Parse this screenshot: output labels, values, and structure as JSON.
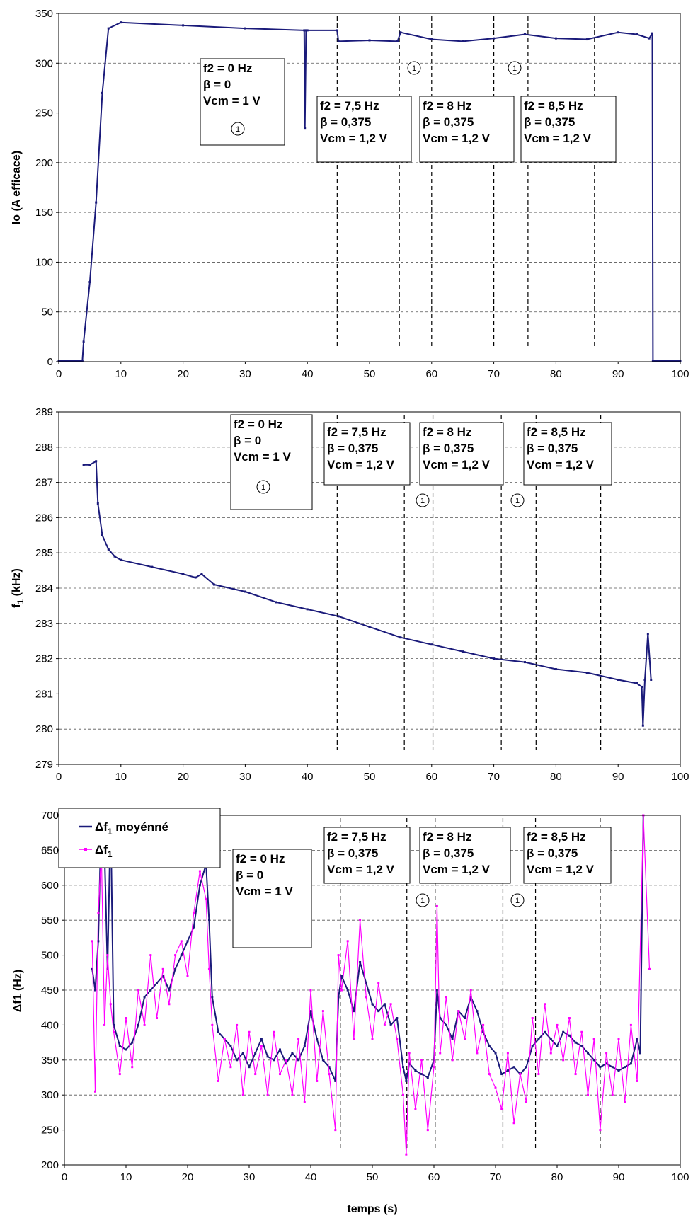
{
  "panels": [
    {
      "id": "io",
      "ylabel": "Io (A efficace)",
      "yticks": [
        "0",
        "50",
        "100",
        "150",
        "200",
        "250",
        "300",
        "350"
      ],
      "xticks": [
        "0",
        "10",
        "20",
        "30",
        "40",
        "50",
        "60",
        "70",
        "80",
        "90",
        "100"
      ],
      "boxes": [
        {
          "lines": [
            "f2 = 0 Hz",
            "β = 0",
            "Vcm = 1 V"
          ],
          "marker": "1"
        },
        {
          "lines": [
            "f2 = 7,5 Hz",
            "β = 0,375",
            "Vcm = 1,2 V"
          ],
          "marker": ""
        },
        {
          "lines": [
            "f2 = 8 Hz",
            "β = 0,375",
            "Vcm = 1,2 V"
          ],
          "marker": ""
        },
        {
          "lines": [
            "f2 = 8,5 Hz",
            "β = 0,375",
            "Vcm = 1,2 V"
          ],
          "marker": ""
        }
      ],
      "markers": [
        "1",
        "1"
      ]
    },
    {
      "id": "f1",
      "ylabel": "f",
      "ylabel_sub": "1",
      "ylabel_rest": " (kHz)",
      "yticks": [
        "279",
        "280",
        "281",
        "282",
        "283",
        "284",
        "285",
        "286",
        "287",
        "288",
        "289"
      ],
      "xticks": [
        "0",
        "10",
        "20",
        "30",
        "40",
        "50",
        "60",
        "70",
        "80",
        "90",
        "100"
      ],
      "boxes": [
        {
          "lines": [
            "f2 = 0 Hz",
            "β = 0",
            "Vcm = 1 V"
          ],
          "marker": "1"
        },
        {
          "lines": [
            "f2 = 7,5 Hz",
            "β = 0,375",
            "Vcm = 1,2 V"
          ],
          "marker": ""
        },
        {
          "lines": [
            "f2 = 8 Hz",
            "β = 0,375",
            "Vcm = 1,2 V"
          ],
          "marker": ""
        },
        {
          "lines": [
            "f2 = 8,5 Hz",
            "β = 0,375",
            "Vcm = 1,2 V"
          ],
          "marker": ""
        }
      ],
      "markers": [
        "1",
        "1"
      ]
    },
    {
      "id": "df1",
      "ylabel": "Δf1  (Hz)",
      "xlabel": "temps (s)",
      "yticks": [
        "200",
        "250",
        "300",
        "350",
        "400",
        "450",
        "500",
        "550",
        "600",
        "650",
        "700"
      ],
      "xticks": [
        "0",
        "10",
        "20",
        "30",
        "40",
        "50",
        "60",
        "70",
        "80",
        "90",
        "100"
      ],
      "boxes": [
        {
          "lines": [
            "f2 = 0 Hz",
            "β = 0",
            "Vcm = 1 V"
          ],
          "marker": ""
        },
        {
          "lines": [
            "f2 = 7,5 Hz",
            "β = 0,375",
            "Vcm = 1,2 V"
          ],
          "marker": ""
        },
        {
          "lines": [
            "f2 = 8 Hz",
            "β = 0,375",
            "Vcm = 1,2 V"
          ],
          "marker": ""
        },
        {
          "lines": [
            "f2 = 8,5 Hz",
            "β = 0,375",
            "Vcm = 1,2 V"
          ],
          "marker": ""
        }
      ],
      "markers": [
        "1",
        "1"
      ],
      "legend": [
        {
          "main": "Δf",
          "sub": "1",
          "rest": " moyénné"
        },
        {
          "main": "Δf",
          "sub": "1",
          "rest": ""
        }
      ]
    }
  ],
  "chart_data": [
    {
      "type": "line",
      "ylabel": "Io (A efficace)",
      "xlim": [
        0,
        100
      ],
      "ylim": [
        0,
        350
      ],
      "grid": true,
      "color": "#1a1a7a",
      "x": [
        0,
        3.8,
        4,
        5,
        6,
        7,
        8,
        10,
        20,
        30,
        39.5,
        39.6,
        39.8,
        40,
        44.8,
        45,
        50,
        54.5,
        55,
        60,
        65,
        70,
        75,
        80,
        85,
        90,
        93,
        95,
        95.5,
        95.6,
        96,
        100
      ],
      "y": [
        1,
        1,
        20,
        80,
        160,
        270,
        335,
        341,
        338,
        335,
        333,
        235,
        333,
        333,
        333,
        322,
        323,
        322,
        331,
        324,
        322,
        325,
        329,
        325,
        324,
        331,
        329,
        325,
        330,
        1,
        1,
        1
      ],
      "vlines": [
        44.8,
        54.8,
        60,
        70,
        75.5,
        86.2
      ]
    },
    {
      "type": "line",
      "ylabel": "f1 (kHz)",
      "xlim": [
        0,
        100
      ],
      "ylim": [
        279,
        289
      ],
      "grid": true,
      "color": "#1a1a7a",
      "x": [
        4,
        5,
        6,
        6.3,
        7,
        8,
        9,
        10,
        15,
        20,
        22,
        23,
        25,
        30,
        35,
        40,
        45,
        50,
        55,
        60,
        65,
        70,
        75,
        80,
        85,
        90,
        93,
        93.8,
        94,
        94.3,
        94.8,
        95.3
      ],
      "y": [
        287.5,
        287.5,
        287.6,
        286.4,
        285.5,
        285.1,
        284.9,
        284.8,
        284.6,
        284.4,
        284.3,
        284.4,
        284.1,
        283.9,
        283.6,
        283.4,
        283.2,
        282.9,
        282.6,
        282.4,
        282.2,
        282.0,
        281.9,
        281.7,
        281.6,
        281.4,
        281.3,
        281.2,
        280.1,
        281.4,
        282.7,
        281.4
      ],
      "vlines": [
        44.8,
        55.6,
        60.2,
        71.2,
        76.8,
        87.2
      ]
    },
    {
      "type": "line",
      "xlabel": "temps (s)",
      "ylabel": "Δf1 (Hz)",
      "xlim": [
        0,
        100
      ],
      "ylim": [
        200,
        700
      ],
      "grid": true,
      "series": [
        {
          "name": "Δf1 moyénné",
          "color": "#1a1a7a",
          "x": [
            4.5,
            5,
            5.5,
            6,
            6.5,
            7,
            7.5,
            8,
            9,
            10,
            11,
            12,
            13,
            14,
            15,
            16,
            17,
            18,
            19,
            20,
            21,
            22,
            23,
            23.5,
            24,
            25,
            26,
            27,
            28,
            29,
            30,
            31,
            32,
            33,
            34,
            35,
            36,
            37,
            38,
            39,
            40,
            41,
            42,
            43,
            44,
            44.5,
            45,
            46,
            47,
            48,
            49,
            50,
            51,
            52,
            53,
            54,
            55,
            55.5,
            56,
            57,
            58,
            59,
            60,
            60.5,
            61,
            62,
            63,
            64,
            65,
            66,
            67,
            68,
            69,
            70,
            71,
            72,
            73,
            74,
            75,
            76,
            77,
            78,
            79,
            80,
            81,
            82,
            83,
            84,
            85,
            86,
            87,
            88,
            89,
            90,
            91,
            92,
            93,
            93.5,
            94
          ],
          "y": [
            480,
            450,
            520,
            700,
            650,
            480,
            700,
            400,
            370,
            365,
            375,
            400,
            440,
            450,
            460,
            470,
            450,
            480,
            500,
            520,
            540,
            600,
            630,
            550,
            440,
            390,
            380,
            370,
            350,
            360,
            340,
            360,
            380,
            355,
            350,
            365,
            345,
            360,
            350,
            370,
            420,
            380,
            350,
            340,
            320,
            440,
            470,
            450,
            420,
            490,
            460,
            430,
            420,
            430,
            400,
            410,
            340,
            320,
            345,
            335,
            330,
            325,
            350,
            450,
            410,
            400,
            380,
            420,
            410,
            440,
            420,
            390,
            370,
            360,
            330,
            335,
            340,
            330,
            340,
            370,
            380,
            390,
            380,
            370,
            390,
            385,
            375,
            370,
            360,
            350,
            340,
            345,
            340,
            335,
            340,
            345,
            380,
            360,
            700
          ]
        },
        {
          "name": "Δf1",
          "color": "#ff00ff",
          "x": [
            4.5,
            5,
            5.5,
            6,
            6.5,
            7,
            7.5,
            8,
            9,
            10,
            11,
            12,
            13,
            14,
            15,
            16,
            17,
            18,
            19,
            20,
            21,
            22,
            23,
            23.5,
            24,
            25,
            26,
            27,
            28,
            29,
            30,
            31,
            32,
            33,
            34,
            35,
            36,
            37,
            38,
            39,
            40,
            41,
            42,
            43,
            44,
            44.5,
            45,
            46,
            47,
            48,
            49,
            50,
            51,
            52,
            53,
            54,
            55,
            55.5,
            56,
            57,
            58,
            59,
            60,
            60.5,
            61,
            62,
            63,
            64,
            65,
            66,
            67,
            68,
            69,
            70,
            71,
            72,
            73,
            74,
            75,
            76,
            77,
            78,
            79,
            80,
            81,
            82,
            83,
            84,
            85,
            86,
            87,
            88,
            89,
            90,
            91,
            92,
            93,
            94,
            95
          ],
          "y": [
            520,
            305,
            560,
            650,
            400,
            500,
            430,
            390,
            330,
            410,
            340,
            450,
            400,
            500,
            410,
            480,
            430,
            500,
            520,
            470,
            560,
            620,
            580,
            480,
            400,
            320,
            380,
            340,
            400,
            300,
            390,
            330,
            370,
            300,
            390,
            330,
            350,
            300,
            380,
            290,
            450,
            320,
            420,
            330,
            250,
            500,
            450,
            520,
            380,
            550,
            440,
            380,
            460,
            400,
            430,
            380,
            300,
            215,
            360,
            280,
            350,
            250,
            340,
            570,
            360,
            440,
            350,
            420,
            380,
            450,
            360,
            400,
            330,
            310,
            280,
            360,
            260,
            330,
            290,
            410,
            330,
            430,
            360,
            400,
            350,
            410,
            330,
            390,
            300,
            380,
            250,
            360,
            300,
            380,
            290,
            400,
            320,
            700,
            480
          ]
        }
      ],
      "vlines": [
        44.8,
        55.6,
        60.2,
        71.2,
        76.5,
        87
      ]
    }
  ]
}
